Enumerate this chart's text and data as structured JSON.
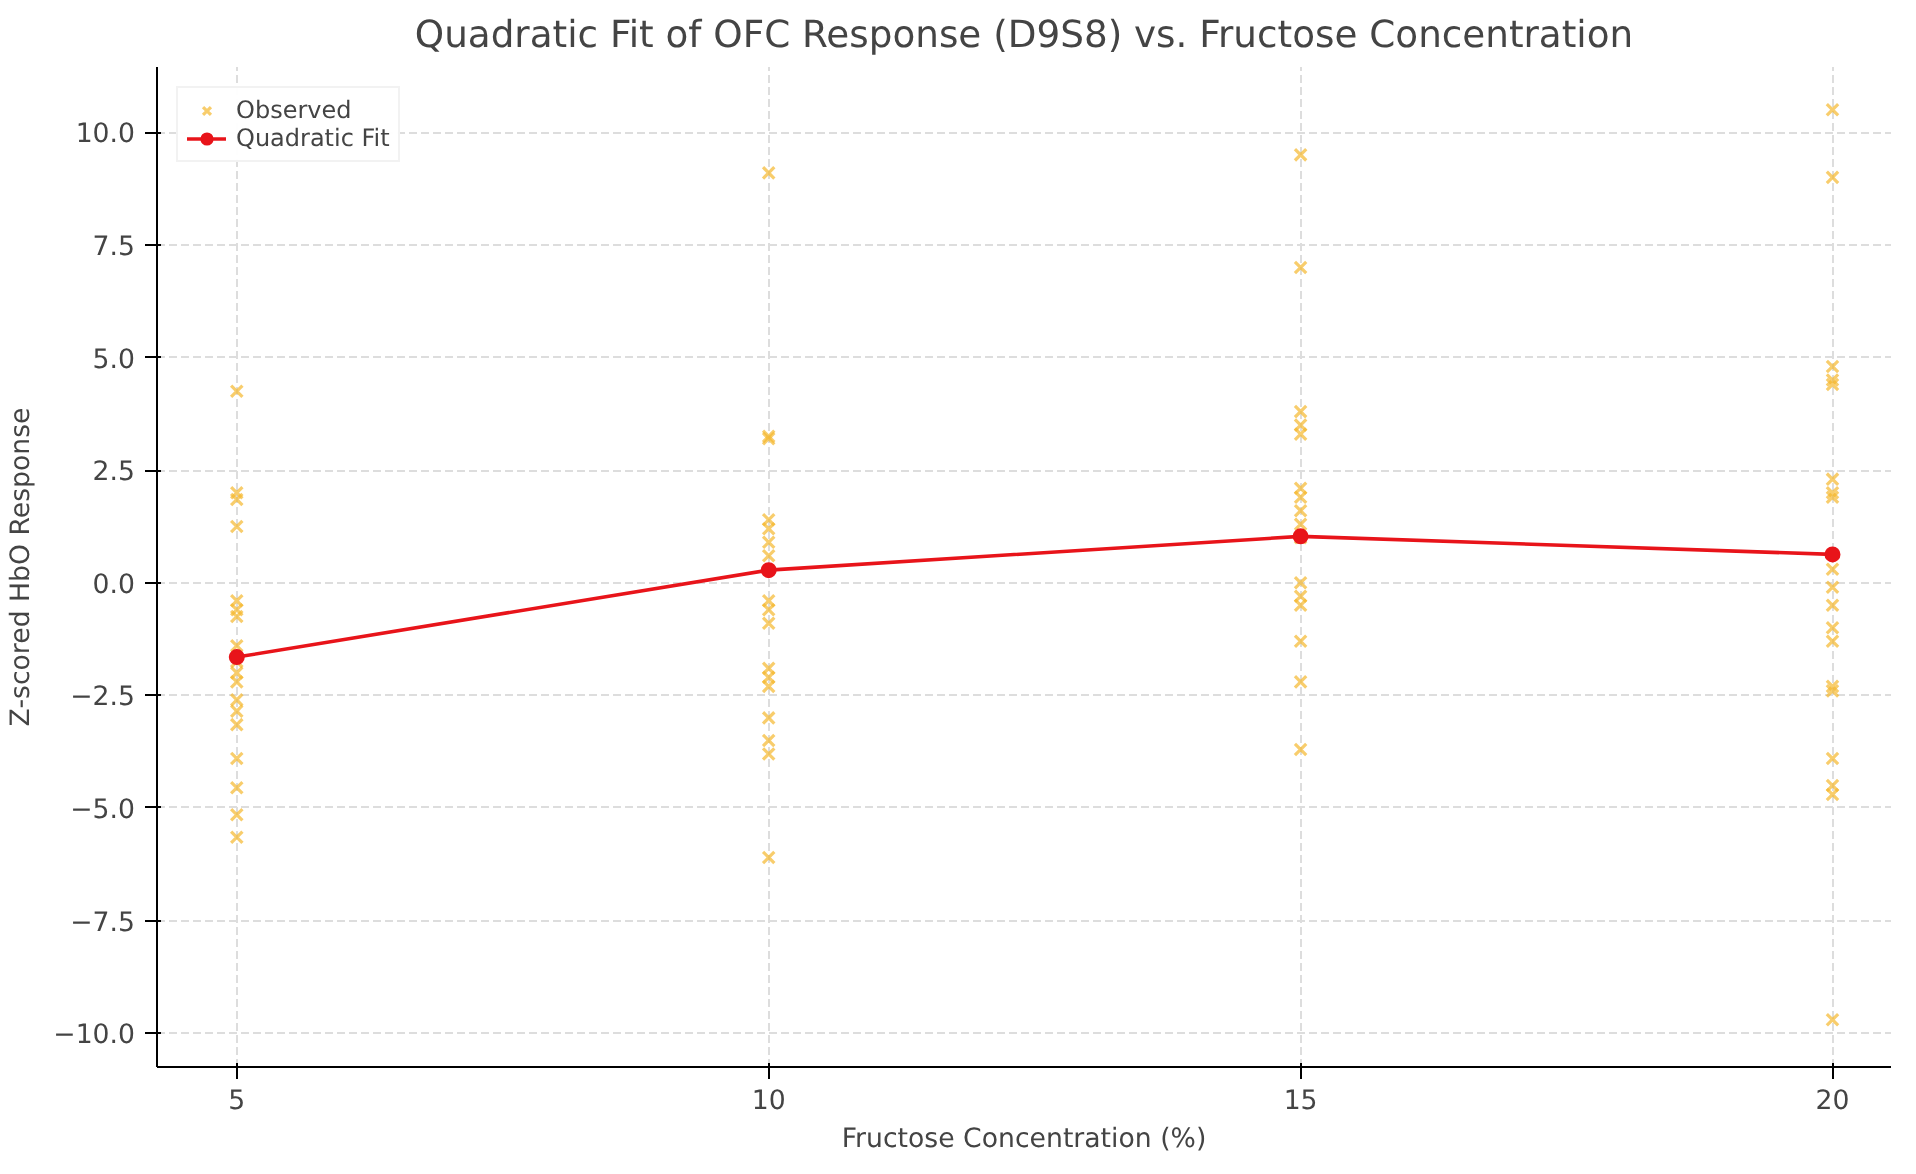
{
  "chart_data": {
    "type": "scatter",
    "title": "Quadratic Fit of OFC Response (D9S8) vs. Fructose Concentration",
    "xlabel": "Fructose Concentration (%)",
    "ylabel": "Z-scored HbO Response",
    "xlim": [
      4.25,
      20.55
    ],
    "ylim": [
      -10.75,
      11.45
    ],
    "xticks": [
      5,
      10,
      15,
      20
    ],
    "yticks": [
      {
        "value": -10,
        "label": "−10.0"
      },
      {
        "value": -7.5,
        "label": "−7.5"
      },
      {
        "value": -5,
        "label": "−5.0"
      },
      {
        "value": -2.5,
        "label": "−2.5"
      },
      {
        "value": 0,
        "label": "0.0"
      },
      {
        "value": 2.5,
        "label": "2.5"
      },
      {
        "value": 5,
        "label": "5.0"
      },
      {
        "value": 7.5,
        "label": "7.5"
      },
      {
        "value": 10,
        "label": "10.0"
      }
    ],
    "grid": true,
    "legend": "top left",
    "series": [
      {
        "name": "Observed",
        "type": "scatter",
        "marker": "cross",
        "color": "#f5b82e",
        "x": [
          5,
          5,
          5,
          5,
          5,
          5,
          5,
          5,
          5,
          5,
          5,
          5,
          5,
          5,
          5,
          5,
          5,
          5,
          10,
          10,
          10,
          10,
          10,
          10,
          10,
          10,
          10,
          10,
          10,
          10,
          10,
          10,
          10,
          10,
          10,
          15,
          15,
          15,
          15,
          15,
          15,
          15,
          15,
          15,
          15,
          15,
          15,
          15,
          15,
          15,
          15,
          20,
          20,
          20,
          20,
          20,
          20,
          20,
          20,
          20,
          20,
          20,
          20,
          20,
          20,
          20,
          20,
          20,
          20,
          20
        ],
        "values": [
          4.25,
          2.0,
          1.85,
          1.25,
          -0.4,
          -0.6,
          -0.75,
          -1.4,
          -1.75,
          -2.0,
          -2.2,
          -2.6,
          -2.85,
          -3.15,
          -3.9,
          -4.55,
          -5.15,
          -5.65,
          9.1,
          3.25,
          3.2,
          1.4,
          1.2,
          0.9,
          0.6,
          -0.4,
          -0.6,
          -0.9,
          -1.9,
          -2.1,
          -2.3,
          -3.0,
          -3.5,
          -3.8,
          -6.1,
          9.5,
          7.0,
          3.8,
          3.5,
          3.3,
          2.1,
          1.9,
          1.6,
          1.3,
          1.0,
          0.0,
          -0.3,
          -0.5,
          -1.3,
          -2.2,
          -3.7,
          10.5,
          9.0,
          4.8,
          4.5,
          4.4,
          2.3,
          2.0,
          1.9,
          0.3,
          -0.1,
          -0.5,
          -1.0,
          -1.3,
          -2.3,
          -2.4,
          -3.9,
          -4.5,
          -4.7,
          -9.7
        ]
      },
      {
        "name": "Quadratic Fit",
        "type": "line",
        "marker": "circle",
        "line_style": "solid",
        "color": "#e8141a",
        "x": [
          5,
          10,
          15,
          20
        ],
        "values": [
          -1.65,
          0.28,
          1.03,
          0.63
        ]
      }
    ]
  }
}
